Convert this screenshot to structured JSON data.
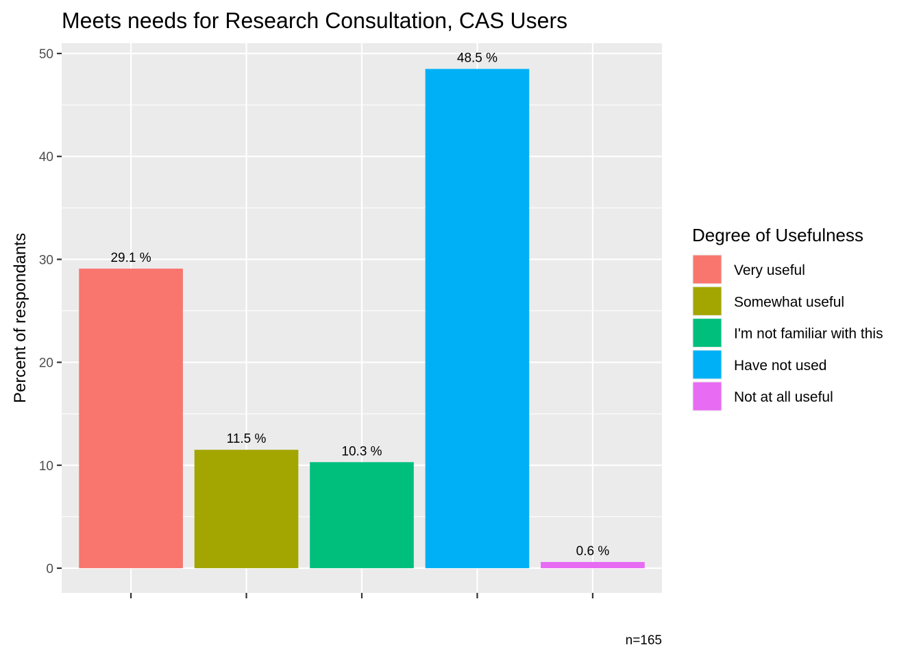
{
  "chart_data": {
    "type": "bar",
    "title": "Meets needs for Research Consultation,  CAS Users",
    "xlabel": "",
    "ylabel": "Percent of respondants",
    "ylim": [
      -2.4,
      51
    ],
    "yticks": [
      0,
      10,
      20,
      30,
      40,
      50
    ],
    "categories": [
      "Very useful",
      "Somewhat useful",
      "I'm not familiar with this",
      "Have not used",
      "Not at all useful"
    ],
    "values": [
      29.1,
      11.5,
      10.3,
      48.5,
      0.6
    ],
    "data_labels": [
      "29.1 %",
      "11.5 %",
      "10.3 %",
      "48.5 %",
      "0.6 %"
    ],
    "colors": [
      "#F8766D",
      "#A3A500",
      "#00BF7D",
      "#00B0F6",
      "#E76BF3"
    ],
    "grid": true,
    "panel_background": "#EBEBEB",
    "grid_color": "#FFFFFF",
    "legend": {
      "title": "Degree of Usefulness",
      "placement": "right",
      "entries": [
        "Very useful",
        "Somewhat useful",
        "I'm not familiar with this",
        "Have not used",
        "Not at all useful"
      ]
    },
    "caption": "n=165"
  }
}
